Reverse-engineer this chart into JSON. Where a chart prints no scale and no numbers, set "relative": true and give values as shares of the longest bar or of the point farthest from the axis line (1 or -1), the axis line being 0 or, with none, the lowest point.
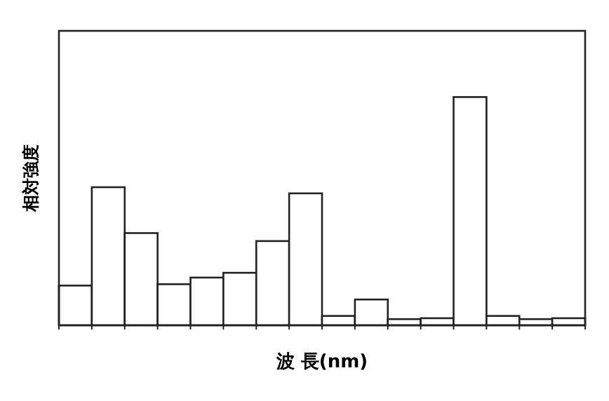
{
  "chart_data": {
    "type": "bar",
    "xlabel": "波 長(nm)",
    "ylabel": "相対強度",
    "relative": true,
    "categories": [
      null,
      null,
      null,
      null,
      null,
      null,
      null,
      null,
      null,
      null,
      null,
      null,
      null,
      null,
      null,
      null
    ],
    "values": [
      0.174,
      0.605,
      0.404,
      0.18,
      0.209,
      0.23,
      0.369,
      0.578,
      0.041,
      0.113,
      0.027,
      0.031,
      1,
      0.041,
      0.027,
      0.031
    ],
    "color": "#ffffff"
  }
}
